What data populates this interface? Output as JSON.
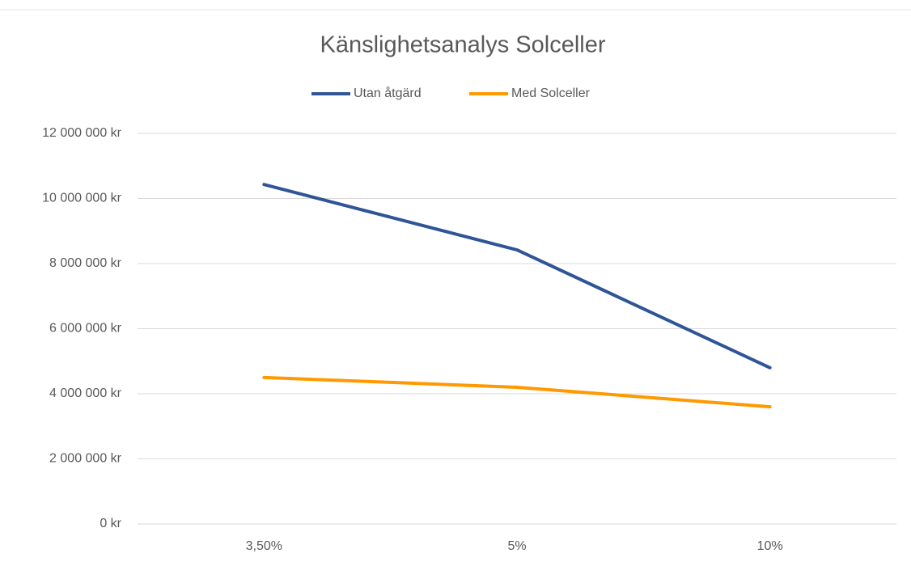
{
  "chart_data": {
    "type": "line",
    "title": "Känslighetsanalys Solceller",
    "categories": [
      "3,50%",
      "5%",
      "10%"
    ],
    "series": [
      {
        "name": "Utan åtgärd",
        "color": "#2f5597",
        "values": [
          10430000,
          8420000,
          4800000
        ]
      },
      {
        "name": "Med Solceller",
        "color": "#ff9900",
        "values": [
          4500000,
          4200000,
          3600000
        ]
      }
    ],
    "ylim": [
      0,
      12000000
    ],
    "yticks": [
      {
        "value": 0,
        "label": "0 kr"
      },
      {
        "value": 2000000,
        "label": "2 000 000 kr"
      },
      {
        "value": 4000000,
        "label": "4 000 000 kr"
      },
      {
        "value": 6000000,
        "label": "6 000 000 kr"
      },
      {
        "value": 8000000,
        "label": "8 000 000 kr"
      },
      {
        "value": 10000000,
        "label": "10 000 000 kr"
      },
      {
        "value": 12000000,
        "label": "12 000 000 kr"
      }
    ],
    "grid": true,
    "legend": "top"
  }
}
